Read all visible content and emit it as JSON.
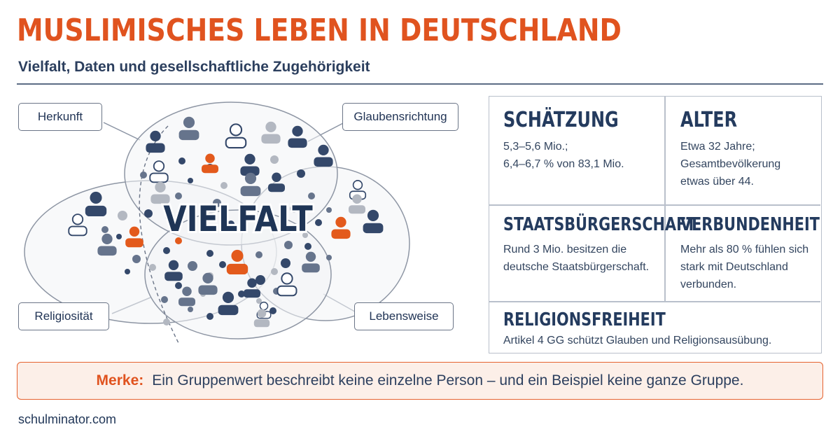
{
  "header": {
    "title": "MUSLIMISCHES LEBEN IN DEUTSCHLAND",
    "subtitle": "Vielfalt, Daten und gesellschaftliche Zugehörigkeit"
  },
  "diagram": {
    "center_label": "VIELFALT",
    "tags": {
      "herkunft": "Herkunft",
      "glaubensrichtung": "Glaubensrichtung",
      "religiositaet": "Religiosität",
      "lebensweise": "Lebensweise"
    },
    "colors": {
      "navy": "#34486a",
      "slate": "#66748c",
      "orange": "#e35a1c",
      "grey": "#b3b8c1"
    }
  },
  "stats": {
    "schaetzung": {
      "heading": "SCHÄTZUNG",
      "line1": "5,3–5,6 Mio.;",
      "line2": "6,4–6,7 % von 83,1 Mio."
    },
    "alter": {
      "heading": "ALTER",
      "line1": "Etwa 32 Jahre;",
      "line2": "Gesamtbevölkerung",
      "line3": "etwas über 44."
    },
    "staatsbuergerschaft": {
      "heading": "STAATSBÜRGERSCHAFT",
      "line1": "Rund 3 Mio. besitzen die",
      "line2": "deutsche Staatsbürgerschaft."
    },
    "verbundenheit": {
      "heading": "VERBUNDENHEIT",
      "line1": "Mehr als 80 % fühlen sich",
      "line2": "stark mit Deutschland",
      "line3": "verbunden."
    },
    "religionsfreiheit": {
      "heading": "RELIGIONSFREIHEIT",
      "line1": "Artikel 4 GG schützt Glauben und Religionsausübung."
    }
  },
  "merke": {
    "label": "Merke:",
    "text": "Ein Gruppenwert beschreibt keine einzelne Person – und ein Beispiel keine ganze Gruppe."
  },
  "footer": {
    "site": "schulminator.com"
  },
  "colors": {
    "accent": "#e0531f",
    "text": "#243b5e",
    "border": "#b9c0cb",
    "merke_bg": "#fcefe8"
  }
}
